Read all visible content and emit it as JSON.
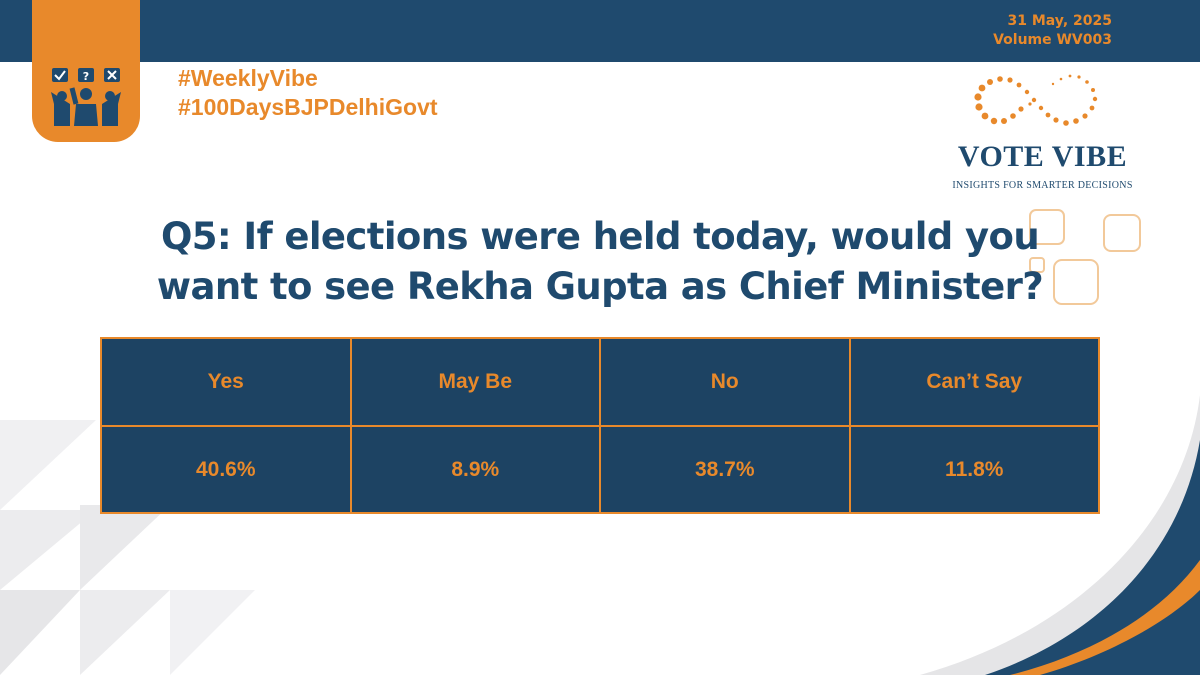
{
  "header": {
    "date": "31 May, 2025",
    "volume": "Volume WV003"
  },
  "hashtags": [
    "#WeeklyVibe",
    "#100DaysBJPDelhiGovt"
  ],
  "brand": {
    "name": "VOTE VIBE",
    "tagline": "INSIGHTS FOR SMARTER DECISIONS"
  },
  "question": {
    "line1": "Q5: If elections were held today, would you",
    "line2": "want to see Rekha Gupta as Chief Minister?"
  },
  "results": {
    "headers": [
      "Yes",
      "May Be",
      "No",
      "Can’t Say"
    ],
    "values": [
      "40.6%",
      "8.9%",
      "38.7%",
      "11.8%"
    ]
  },
  "colors": {
    "navy": "#1f4a6e",
    "orange": "#e8892b"
  },
  "icons": [
    "checkbox-icon",
    "question-mark-icon",
    "x-mark-icon",
    "voters-group-icon",
    "infinity-logo-icon"
  ]
}
